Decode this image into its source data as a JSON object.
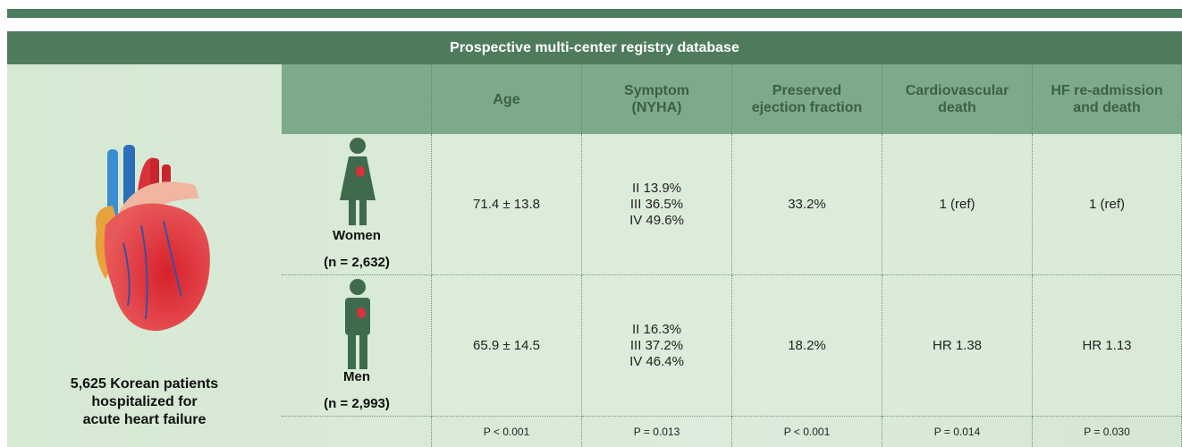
{
  "banner": {
    "title": "Prospective multi-center registry database"
  },
  "cohort": {
    "lines": [
      "5,625 Korean patients",
      "hospitalized for",
      "acute heart failure"
    ]
  },
  "table": {
    "headers": [
      [
        "Age"
      ],
      [
        "Symptom",
        "(NYHA)"
      ],
      [
        "Preserved",
        "ejection fraction"
      ],
      [
        "Cardiovascular",
        "death"
      ],
      [
        "HF re-admission",
        "and death"
      ]
    ],
    "rows": [
      {
        "group": "Women",
        "n": "(n = 2,632)",
        "cells": [
          [
            "71.4 ± 13.8"
          ],
          [
            "II 13.9%",
            "III 36.5%",
            "IV 49.6%"
          ],
          [
            "33.2%"
          ],
          [
            "1 (ref)"
          ],
          [
            "1 (ref)"
          ]
        ]
      },
      {
        "group": "Men",
        "n": "(n = 2,993)",
        "cells": [
          [
            "65.9 ± 14.5"
          ],
          [
            "II 16.3%",
            "III 37.2%",
            "IV 46.4%"
          ],
          [
            "18.2%"
          ],
          [
            "HR 1.38"
          ],
          [
            "HR 1.13"
          ]
        ]
      }
    ],
    "p_values": [
      "P < 0.001",
      "P = 0.013",
      "P < 0.001",
      "P = 0.014",
      "P = 0.030"
    ]
  }
}
